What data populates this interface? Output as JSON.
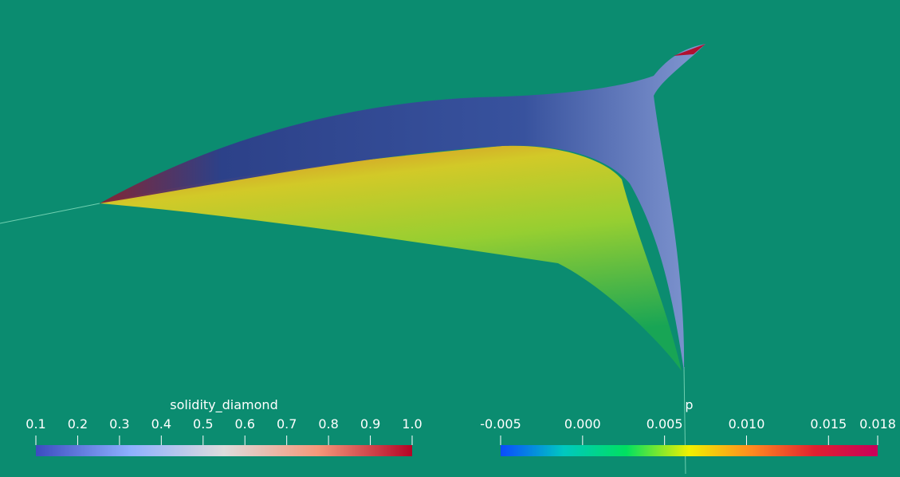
{
  "colorbars": [
    {
      "title": "solidity_diamond",
      "range": [
        0.1,
        1
      ],
      "ticks": [
        0.1,
        0.2,
        0.3,
        0.4,
        0.5,
        0.6,
        0.7,
        0.8,
        0.9,
        {
          "value": 1,
          "label": "1.0"
        }
      ],
      "colors": [
        "#3b4cc0",
        "#8db0fe",
        "#dddcdc",
        "#f4987a",
        "#b40426"
      ]
    },
    {
      "title": "p",
      "range": [
        -0.005,
        0.018
      ],
      "ticks": [
        -0.005,
        {
          "value": 0,
          "label": "0.000"
        },
        0.005,
        {
          "value": 0.01,
          "label": "0.010"
        },
        0.015,
        0.018
      ],
      "colors": [
        "#0a4cff",
        "#00c8c0",
        "#00e060",
        "#f0f000",
        "#ff8a20",
        "#e02030",
        "#c8005a"
      ]
    }
  ]
}
